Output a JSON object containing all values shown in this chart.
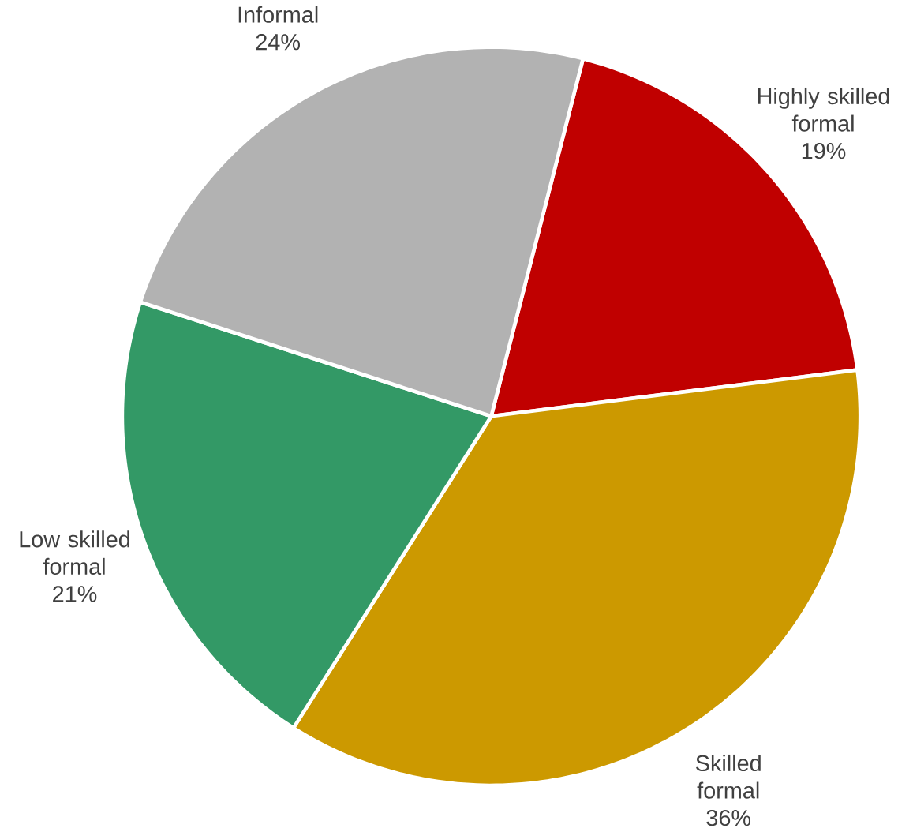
{
  "chart_data": {
    "type": "pie",
    "categories": [
      "Highly skilled formal",
      "Skilled formal",
      "Low skilled formal",
      "Informal"
    ],
    "values": [
      19,
      36,
      21,
      24
    ],
    "value_labels": [
      "19%",
      "36%",
      "21%",
      "24%"
    ],
    "colors": [
      "#c00000",
      "#cc9900",
      "#339966",
      "#b2b2b2"
    ]
  }
}
